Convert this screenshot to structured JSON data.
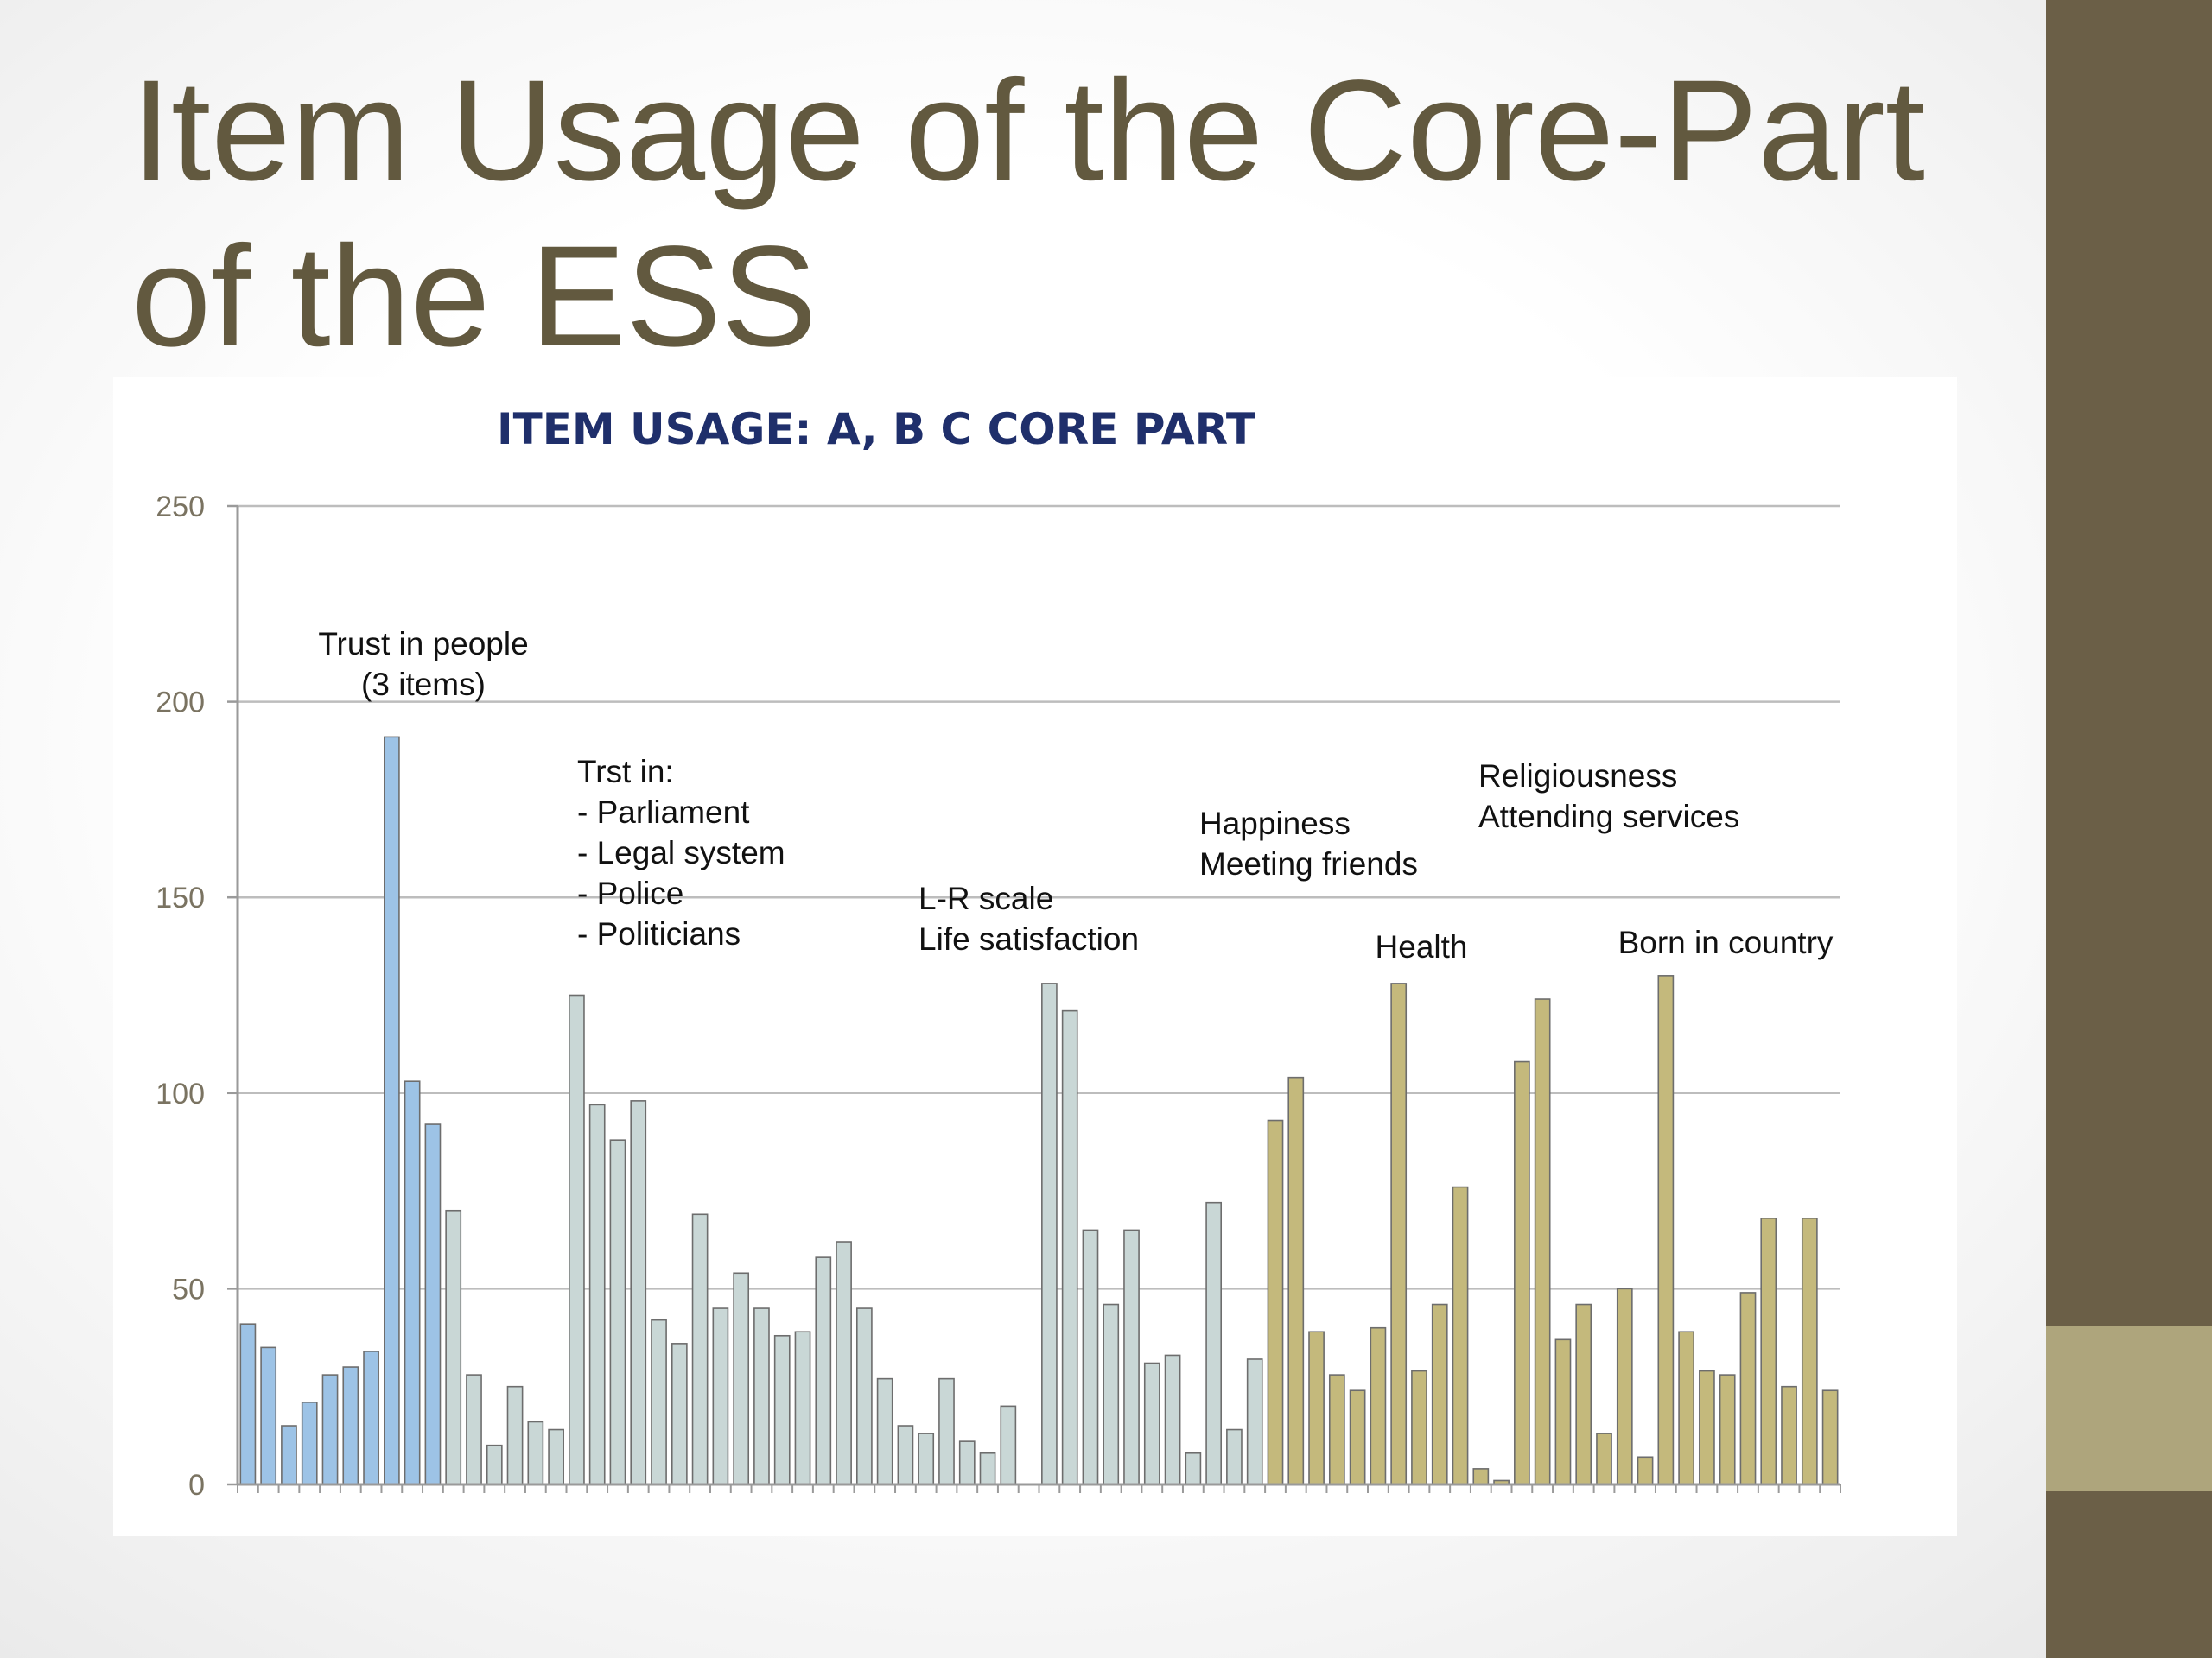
{
  "slide": {
    "title_line1": "Item Usage of the Core-Part",
    "title_line2": "of the ESS"
  },
  "colors": {
    "sidebar": "#6b5f47",
    "sidebar_accent": "#aea57c",
    "title_text": "#62593f",
    "chart_title": "#1f2f6b",
    "group_trust_people": "#9dc3e6",
    "group_trust_institutions": "#c9d7d6",
    "group_happiness_health_religion": "#c4b97c"
  },
  "chart_data": {
    "type": "bar",
    "title": "ITEM USAGE: A, B C CORE PART",
    "xlabel": "",
    "ylabel": "",
    "ylim": [
      0,
      250
    ],
    "yticks": [
      0,
      50,
      100,
      150,
      200,
      250
    ],
    "grid": true,
    "values": [
      41,
      35,
      15,
      21,
      28,
      30,
      34,
      191,
      103,
      92,
      70,
      28,
      10,
      25,
      16,
      14,
      125,
      97,
      88,
      98,
      42,
      36,
      69,
      45,
      54,
      45,
      38,
      39,
      58,
      62,
      45,
      27,
      15,
      13,
      27,
      11,
      8,
      20,
      0,
      128,
      121,
      65,
      46,
      65,
      31,
      33,
      8,
      72,
      14,
      32,
      93,
      104,
      39,
      28,
      24,
      40,
      128,
      29,
      46,
      76,
      4,
      1,
      108,
      124,
      37,
      46,
      13,
      50,
      7,
      130,
      39,
      29,
      28,
      49,
      68,
      25,
      68,
      24
    ],
    "bar_groups": [
      {
        "start": 0,
        "end": 9,
        "color": "#9dc3e6"
      },
      {
        "start": 10,
        "end": 49,
        "color": "#c9d7d6"
      },
      {
        "start": 50,
        "end": 77,
        "color": "#c4b97c"
      }
    ],
    "annotations": [
      {
        "lines": [
          "Trust in people",
          "(3 items)"
        ]
      },
      {
        "lines": [
          "Trst in:",
          "- Parliament",
          "- Legal system",
          "- Police",
          "- Politicians"
        ]
      },
      {
        "lines": [
          "L-R scale",
          "Life satisfaction"
        ]
      },
      {
        "lines": [
          "Happiness",
          "Meeting friends"
        ]
      },
      {
        "lines": [
          "Health"
        ]
      },
      {
        "lines": [
          "Religiousness",
          "Attending services"
        ]
      },
      {
        "lines": [
          "Born in country"
        ]
      }
    ]
  }
}
